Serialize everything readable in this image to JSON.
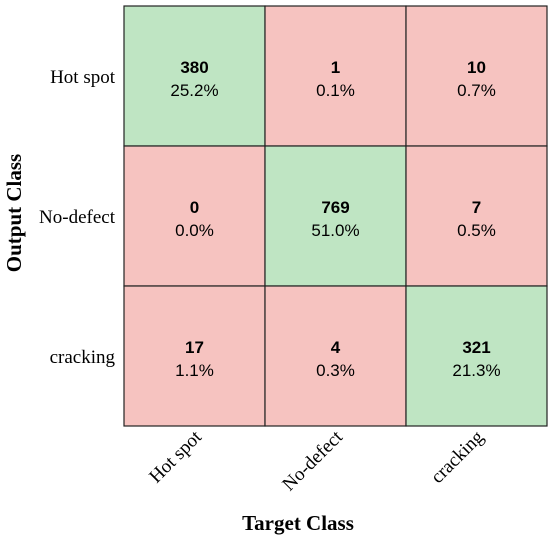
{
  "chart_data": {
    "type": "heatmap",
    "subtype": "confusion-matrix",
    "title": "",
    "xlabel": "Target Class",
    "ylabel": "Output Class",
    "row_labels": [
      "Hot spot",
      "No-defect",
      "cracking"
    ],
    "col_labels": [
      "Hot spot",
      "No-defect",
      "cracking"
    ],
    "counts": [
      [
        380,
        1,
        10
      ],
      [
        0,
        769,
        7
      ],
      [
        17,
        4,
        321
      ]
    ],
    "percents": [
      [
        "25.2%",
        "0.1%",
        "0.7%"
      ],
      [
        "0.0%",
        "51.0%",
        "0.5%"
      ],
      [
        "1.1%",
        "0.3%",
        "21.3%"
      ]
    ],
    "colors": {
      "correct": "#bfe5c3",
      "incorrect": "#f6c3c0",
      "grid": "#222222"
    }
  }
}
